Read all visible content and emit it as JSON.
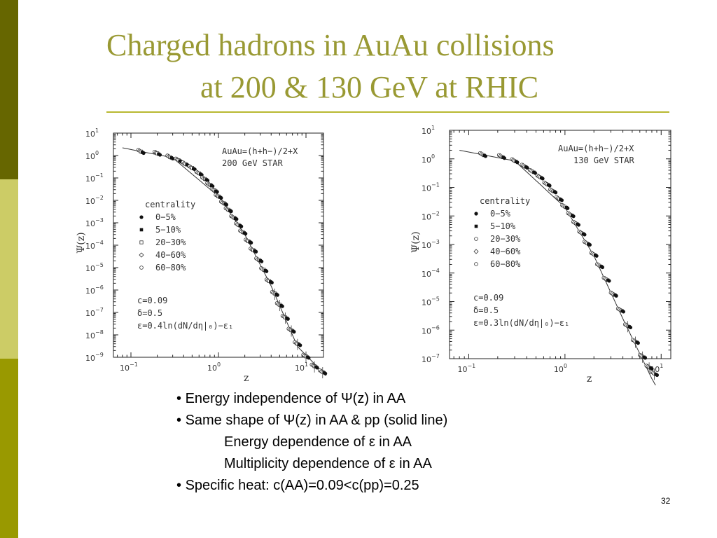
{
  "slide": {
    "title_line1": "Charged hadrons in AuAu collisions",
    "title_line2": "at 200 & 130 GeV at RHIC",
    "bullets": [
      "Energy independence of Ψ(z) in AA",
      "Same shape of Ψ(z) in AA & pp (solid line)",
      "Energy dependence of ε in  AA",
      "Multiplicity dependence of ε in AA",
      "Specific heat: c(AA)=0.09<c(pp)=0.25"
    ],
    "bullet_is_sub": [
      false,
      false,
      true,
      true,
      false
    ],
    "page_number": "32"
  },
  "chart_data": [
    {
      "type": "scatter",
      "title": "AuAu=(h+h−)/2+X",
      "subtitle": "200 GeV STAR",
      "xlabel": "z",
      "ylabel": "Ψ(z)",
      "x_scale": "log",
      "y_scale": "log",
      "xlim_exp": [
        -1.2,
        1.2
      ],
      "ylim_exp": [
        -9,
        1
      ],
      "x_ticks": [
        {
          "mant": "10",
          "exp": "−1",
          "e": -1
        },
        {
          "mant": "10",
          "exp": "0",
          "e": 0
        },
        {
          "mant": "10",
          "exp": "1",
          "e": 1
        }
      ],
      "y_ticks": [
        {
          "mant": "10",
          "exp": "1",
          "e": 1
        },
        {
          "mant": "10",
          "exp": "0",
          "e": 0
        },
        {
          "mant": "10",
          "exp": "−1",
          "e": -1
        },
        {
          "mant": "10",
          "exp": "−2",
          "e": -2
        },
        {
          "mant": "10",
          "exp": "−3",
          "e": -3
        },
        {
          "mant": "10",
          "exp": "−4",
          "e": -4
        },
        {
          "mant": "10",
          "exp": "−5",
          "e": -5
        },
        {
          "mant": "10",
          "exp": "−6",
          "e": -6
        },
        {
          "mant": "10",
          "exp": "−7",
          "e": -7
        },
        {
          "mant": "10",
          "exp": "−8",
          "e": -8
        },
        {
          "mant": "10",
          "exp": "−9",
          "e": -9
        }
      ],
      "legend_title": "centrality",
      "legend_position": "left-middle",
      "series": [
        {
          "name": "0−5%",
          "marker": "filled-circle"
        },
        {
          "name": "5−10%",
          "marker": "filled-square"
        },
        {
          "name": "20−30%",
          "marker": "open-square"
        },
        {
          "name": "40−60%",
          "marker": "open-diamond"
        },
        {
          "name": "60−80%",
          "marker": "open-circle"
        }
      ],
      "points": [
        [
          0.13,
          1.5
        ],
        [
          0.2,
          1.25
        ],
        [
          0.28,
          0.85
        ],
        [
          0.35,
          0.62
        ],
        [
          0.42,
          0.42
        ],
        [
          0.5,
          0.28
        ],
        [
          0.6,
          0.16
        ],
        [
          0.7,
          0.09
        ],
        [
          0.8,
          0.05
        ],
        [
          0.9,
          0.028
        ],
        [
          1.0,
          0.015
        ],
        [
          1.15,
          0.0075
        ],
        [
          1.3,
          0.0038
        ],
        [
          1.5,
          0.0017
        ],
        [
          1.7,
          0.0008
        ],
        [
          1.9,
          0.00038
        ],
        [
          2.2,
          0.00015
        ],
        [
          2.5,
          6e-05
        ],
        [
          2.9,
          2.2e-05
        ],
        [
          3.3,
          8e-06
        ],
        [
          3.8,
          2.5e-06
        ],
        [
          4.4,
          7e-07
        ],
        [
          5.0,
          2.2e-07
        ],
        [
          5.8,
          6e-08
        ],
        [
          6.8,
          1.6e-08
        ],
        [
          8.0,
          4e-09
        ],
        [
          10.0,
          1.1e-09
        ],
        [
          12.5,
          4e-10
        ],
        [
          15.5,
          2.2e-10
        ]
      ],
      "curve": [
        [
          0.08,
          2.2
        ],
        [
          0.3,
          0.8
        ],
        [
          1.0,
          0.015
        ],
        [
          2.0,
          0.0003
        ],
        [
          4.0,
          1.5e-06
        ],
        [
          8.0,
          3e-09
        ],
        [
          17,
          1.5e-10
        ]
      ],
      "annotations": [
        "c=0.09",
        "δ=0.5",
        "ε=0.4ln(dN/dη|₀)−ε₁"
      ]
    },
    {
      "type": "scatter",
      "title": "AuAu=(h+h−)/2+X",
      "subtitle": "130 GeV STAR",
      "xlabel": "z",
      "ylabel": "Ψ(z)",
      "x_scale": "log",
      "y_scale": "log",
      "xlim_exp": [
        -1.2,
        1.1
      ],
      "ylim_exp": [
        -7,
        1
      ],
      "x_ticks": [
        {
          "mant": "10",
          "exp": "−1",
          "e": -1
        },
        {
          "mant": "10",
          "exp": "0",
          "e": 0
        },
        {
          "mant": "10",
          "exp": "1",
          "e": 1
        }
      ],
      "y_ticks": [
        {
          "mant": "10",
          "exp": "1",
          "e": 1
        },
        {
          "mant": "10",
          "exp": "0",
          "e": 0
        },
        {
          "mant": "10",
          "exp": "−1",
          "e": -1
        },
        {
          "mant": "10",
          "exp": "−2",
          "e": -2
        },
        {
          "mant": "10",
          "exp": "−3",
          "e": -3
        },
        {
          "mant": "10",
          "exp": "−4",
          "e": -4
        },
        {
          "mant": "10",
          "exp": "−5",
          "e": -5
        },
        {
          "mant": "10",
          "exp": "−6",
          "e": -6
        },
        {
          "mant": "10",
          "exp": "−7",
          "e": -7
        }
      ],
      "legend_title": "centrality",
      "legend_position": "left-middle",
      "series": [
        {
          "name": "0−5%",
          "marker": "filled-circle"
        },
        {
          "name": "5−10%",
          "marker": "filled-square"
        },
        {
          "name": "20−30%",
          "marker": "open-circle"
        },
        {
          "name": "40−60%",
          "marker": "open-diamond"
        },
        {
          "name": "60−80%",
          "marker": "open-circle"
        }
      ],
      "points": [
        [
          0.14,
          1.4
        ],
        [
          0.22,
          1.2
        ],
        [
          0.3,
          0.85
        ],
        [
          0.38,
          0.55
        ],
        [
          0.46,
          0.36
        ],
        [
          0.55,
          0.23
        ],
        [
          0.65,
          0.13
        ],
        [
          0.75,
          0.075
        ],
        [
          0.87,
          0.04
        ],
        [
          1.0,
          0.021
        ],
        [
          1.15,
          0.011
        ],
        [
          1.3,
          0.0055
        ],
        [
          1.5,
          0.0025
        ],
        [
          1.7,
          0.0011
        ],
        [
          2.0,
          0.00045
        ],
        [
          2.3,
          0.00018
        ],
        [
          2.7,
          6e-05
        ],
        [
          3.2,
          1.8e-05
        ],
        [
          3.8,
          5e-06
        ],
        [
          4.5,
          1.4e-06
        ],
        [
          5.4,
          4e-07
        ],
        [
          6.4,
          1.2e-07
        ],
        [
          7.5,
          5e-08
        ],
        [
          8.5,
          3e-08
        ]
      ],
      "curve": [
        [
          0.08,
          2.0
        ],
        [
          0.3,
          0.85
        ],
        [
          1.0,
          0.02
        ],
        [
          2.0,
          0.0004
        ],
        [
          4.0,
          2.5e-06
        ],
        [
          8.0,
          2e-08
        ],
        [
          11,
          3e-09
        ]
      ],
      "annotations": [
        "c=0.09",
        "δ=0.5",
        "ε=0.3ln(dN/dη|₀)−ε₁"
      ]
    }
  ]
}
